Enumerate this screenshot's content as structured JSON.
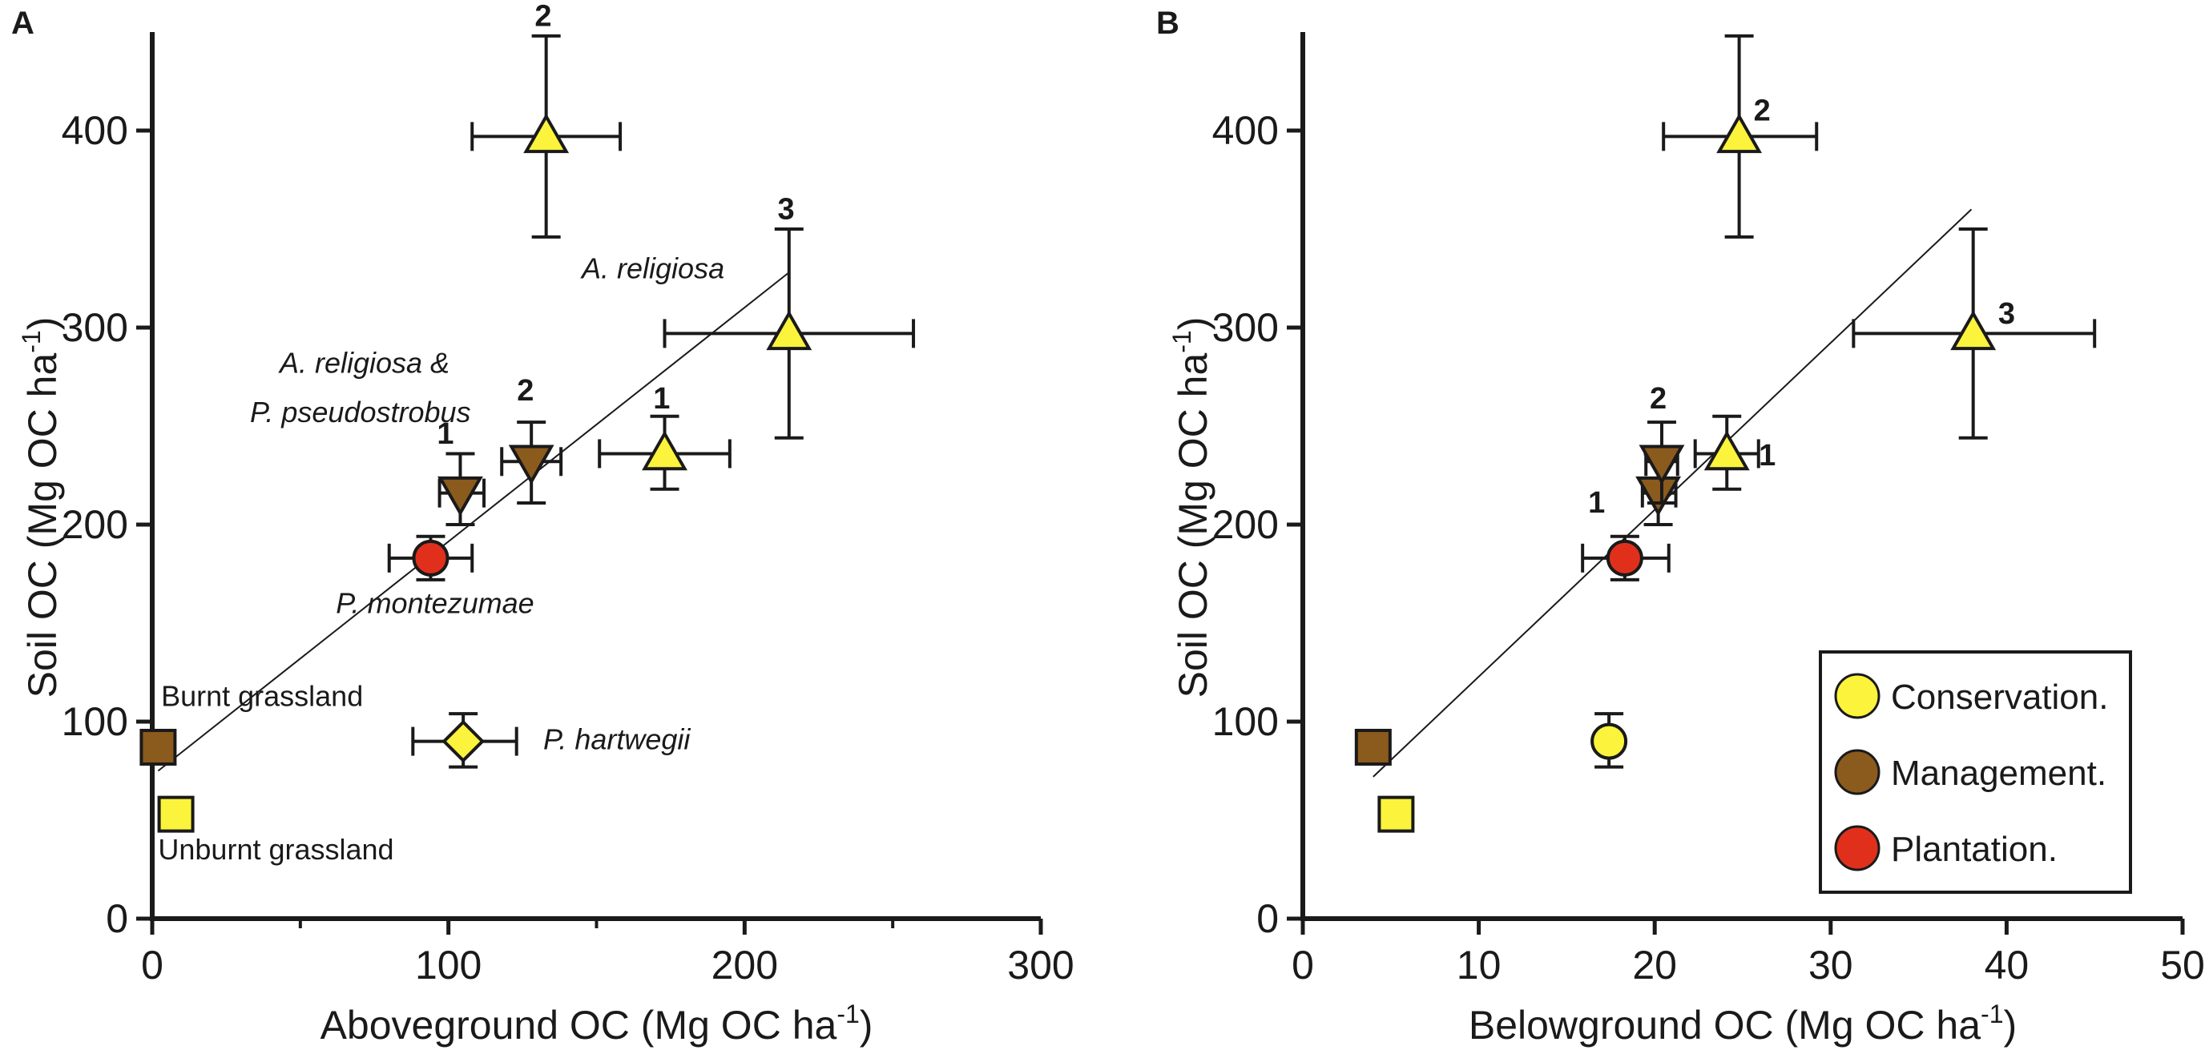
{
  "colors": {
    "conservation": "#fbf33c",
    "management": "#8b5a1d",
    "plantation": "#e0301c",
    "stroke": "#1a1a1a"
  },
  "chart_data": [
    {
      "type": "scatter",
      "panel_label": "A",
      "xlabel": "Aboveground OC (Mg OC ha",
      "ylabel": "Soil OC (Mg OC ha",
      "unit_superscript": "-1",
      "unit_close": ")",
      "xlim": [
        0,
        300
      ],
      "ylim": [
        0,
        450
      ],
      "xticks": [
        0,
        100,
        200,
        300
      ],
      "xticks_minor": [
        50,
        150,
        250
      ],
      "yticks": [
        0,
        100,
        200,
        300,
        400
      ],
      "regression": {
        "x1": 2,
        "y1": 75,
        "x2": 215,
        "y2": 328
      },
      "points": [
        {
          "id": "unburnt-grassland",
          "x": 8,
          "y": 53,
          "marker": "square",
          "group": "conservation"
        },
        {
          "id": "burnt-grassland",
          "x": 2,
          "y": 87,
          "marker": "square",
          "group": "management"
        },
        {
          "id": "p-hartwegii",
          "x": 105,
          "y": 90,
          "xerr": [
            88,
            123
          ],
          "yerr": [
            77,
            104
          ],
          "marker": "diamond",
          "group": "conservation"
        },
        {
          "id": "p-montezumae",
          "x": 94,
          "y": 183,
          "xerr": [
            80,
            108
          ],
          "yerr": [
            172,
            194
          ],
          "marker": "circle",
          "group": "plantation"
        },
        {
          "id": "mixed-1",
          "x": 104,
          "y": 216,
          "xerr": [
            97,
            112
          ],
          "yerr": [
            200,
            236
          ],
          "marker": "triangle-down",
          "group": "management"
        },
        {
          "id": "mixed-2",
          "x": 128,
          "y": 232,
          "xerr": [
            118,
            138
          ],
          "yerr": [
            211,
            252
          ],
          "marker": "triangle-down",
          "group": "management"
        },
        {
          "id": "religiosa-1",
          "x": 173,
          "y": 236,
          "xerr": [
            151,
            195
          ],
          "yerr": [
            218,
            255
          ],
          "marker": "triangle-up",
          "group": "conservation"
        },
        {
          "id": "religiosa-2",
          "x": 133,
          "y": 397,
          "xerr": [
            108,
            158
          ],
          "yerr": [
            346,
            448
          ],
          "marker": "triangle-up",
          "group": "conservation"
        },
        {
          "id": "religiosa-3",
          "x": 215,
          "y": 297,
          "xerr": [
            173,
            257
          ],
          "yerr": [
            244,
            350
          ],
          "marker": "triangle-up",
          "group": "conservation"
        }
      ],
      "annotations": [
        {
          "id": "label-unburnt",
          "text": "Unburnt grassland",
          "x": 2,
          "y": 30,
          "style": "plain"
        },
        {
          "id": "label-burnt",
          "text": "Burnt grassland",
          "x": 3,
          "y": 108,
          "style": "plain"
        },
        {
          "id": "label-hartwegii",
          "text": "P. hartwegii",
          "x": 132,
          "y": 86,
          "style": "italic"
        },
        {
          "id": "label-montezumae",
          "text": "P. montezumae",
          "x": 62,
          "y": 155,
          "style": "italic"
        },
        {
          "id": "label-mixed-a",
          "text": "A. religiosa &",
          "x": 43,
          "y": 277,
          "style": "italic"
        },
        {
          "id": "label-mixed-b",
          "text": "P. pseudostrobus",
          "x": 33,
          "y": 252,
          "style": "italic"
        },
        {
          "id": "label-religiosa",
          "text": "A. religiosa",
          "x": 145,
          "y": 325,
          "style": "italic"
        },
        {
          "id": "num-mixed-1",
          "text": "1",
          "x": 99,
          "y": 241,
          "style": "num"
        },
        {
          "id": "num-mixed-2",
          "text": "2",
          "x": 126,
          "y": 263,
          "style": "num"
        },
        {
          "id": "num-religiosa-1",
          "text": "1",
          "x": 172,
          "y": 259,
          "style": "num"
        },
        {
          "id": "num-religiosa-2",
          "text": "2",
          "x": 132,
          "y": 453,
          "style": "num"
        },
        {
          "id": "num-religiosa-3",
          "text": "3",
          "x": 214,
          "y": 355,
          "style": "num"
        }
      ]
    },
    {
      "type": "scatter",
      "panel_label": "B",
      "xlabel": "Belowground OC (Mg OC ha",
      "ylabel": "Soil OC (Mg OC ha",
      "unit_superscript": "-1",
      "unit_close": ")",
      "xlim": [
        0,
        50
      ],
      "ylim": [
        0,
        450
      ],
      "xticks": [
        0,
        10,
        20,
        30,
        40,
        50
      ],
      "xticks_minor": [],
      "yticks": [
        0,
        100,
        200,
        300,
        400
      ],
      "regression": {
        "x1": 4,
        "y1": 72,
        "x2": 38,
        "y2": 360
      },
      "points": [
        {
          "id": "unburnt-grassland",
          "x": 5.3,
          "y": 53,
          "marker": "square",
          "group": "conservation"
        },
        {
          "id": "burnt-grassland",
          "x": 4,
          "y": 87,
          "marker": "square",
          "group": "management"
        },
        {
          "id": "p-hartwegii",
          "x": 17.4,
          "y": 90,
          "yerr": [
            77,
            104
          ],
          "marker": "circle",
          "group": "conservation"
        },
        {
          "id": "p-montezumae",
          "x": 18.3,
          "y": 183,
          "xerr": [
            15.9,
            20.8
          ],
          "yerr": [
            172,
            194
          ],
          "marker": "circle",
          "group": "plantation"
        },
        {
          "id": "mixed-1",
          "x": 20.2,
          "y": 216,
          "xerr": [
            19.3,
            21.2
          ],
          "yerr": [
            200,
            236
          ],
          "marker": "triangle-down",
          "group": "management"
        },
        {
          "id": "mixed-2",
          "x": 20.4,
          "y": 232,
          "xerr": [
            19.5,
            21.3
          ],
          "yerr": [
            211,
            252
          ],
          "marker": "triangle-down",
          "group": "management"
        },
        {
          "id": "religiosa-1",
          "x": 24.1,
          "y": 236,
          "xerr": [
            22.3,
            25.9
          ],
          "yerr": [
            218,
            255
          ],
          "marker": "triangle-up",
          "group": "conservation"
        },
        {
          "id": "religiosa-2",
          "x": 24.8,
          "y": 397,
          "xerr": [
            20.5,
            29.2
          ],
          "yerr": [
            346,
            448
          ],
          "marker": "triangle-up",
          "group": "conservation"
        },
        {
          "id": "religiosa-3",
          "x": 38.1,
          "y": 297,
          "xerr": [
            31.3,
            45
          ],
          "yerr": [
            244,
            350
          ],
          "marker": "triangle-up",
          "group": "conservation"
        }
      ],
      "annotations": [
        {
          "id": "num-mixed-1",
          "text": "1",
          "x": 16.7,
          "y": 206,
          "style": "num"
        },
        {
          "id": "num-mixed-2",
          "text": "2",
          "x": 20.2,
          "y": 259,
          "style": "num"
        },
        {
          "id": "num-religiosa-1",
          "text": "1",
          "x": 26.4,
          "y": 230,
          "style": "num"
        },
        {
          "id": "num-religiosa-2",
          "text": "2",
          "x": 26.1,
          "y": 405,
          "style": "num"
        },
        {
          "id": "num-religiosa-3",
          "text": "3",
          "x": 40,
          "y": 302,
          "style": "num"
        }
      ],
      "legend": {
        "placement": "bottom-right",
        "entries": [
          {
            "label": "Conservation.",
            "group": "conservation"
          },
          {
            "label": "Management.",
            "group": "management"
          },
          {
            "label": "Plantation.",
            "group": "plantation"
          }
        ]
      }
    }
  ]
}
